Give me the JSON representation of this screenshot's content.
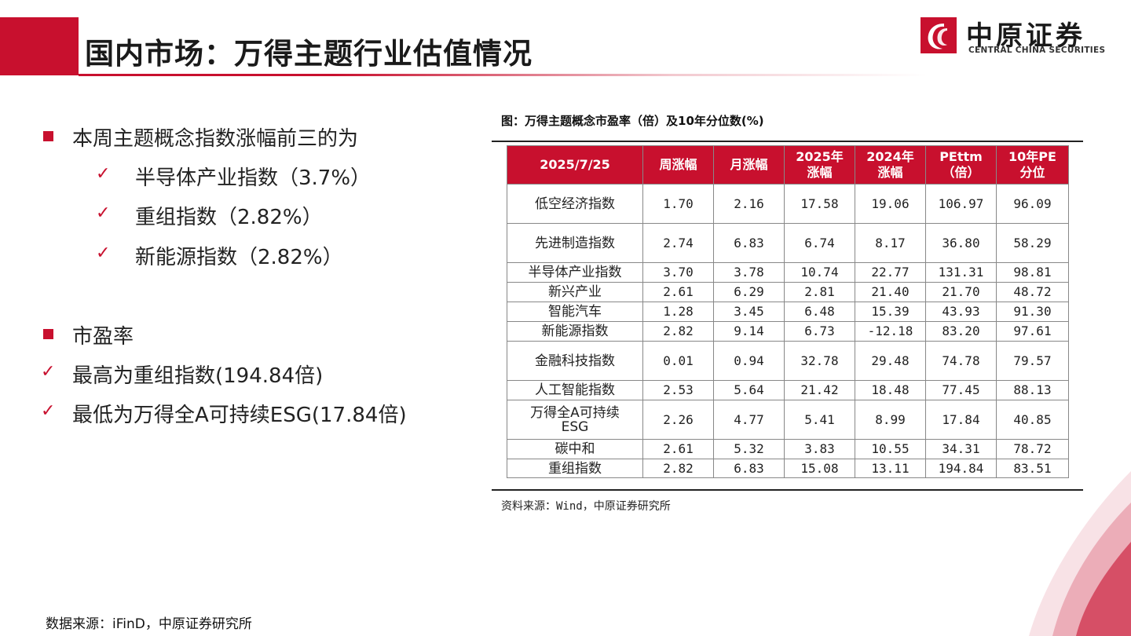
{
  "header": {
    "title": "国内市场：万得主题行业估值情况",
    "logo_cn": "中原证券",
    "logo_en": "CENTRAL CHINA SECURITIES"
  },
  "colors": {
    "accent": "#c8102e"
  },
  "left": {
    "b1": "本周主题概念指数涨幅前三的为",
    "c1": "半导体产业指数（3.7%）",
    "c2": "重组指数（2.82%）",
    "c3": "新能源指数（2.82%）",
    "b2": "市盈率",
    "c4": "最高为重组指数(194.84倍)",
    "c5": "最低为万得全A可持续ESG(17.84倍)",
    "check_glyph": "✓",
    "square_icon": "square-bullet-icon"
  },
  "figure": {
    "title": "图：万得主题概念市盈率（倍）及10年分位数(%)",
    "source": "资料来源：Wind，中原证券研究所"
  },
  "table": {
    "headers": [
      "2025/7/25",
      "周涨幅",
      "月涨幅",
      "2025年\n涨幅",
      "2024年\n涨幅",
      "PEttm\n（倍）",
      "10年PE\n分位"
    ],
    "rows": [
      [
        "低空经济指数",
        "1.70",
        "2.16",
        "17.58",
        "19.06",
        "106.97",
        "96.09"
      ],
      [
        "先进制造指数",
        "2.74",
        "6.83",
        "6.74",
        "8.17",
        "36.80",
        "58.29"
      ],
      [
        "半导体产业指数",
        "3.70",
        "3.78",
        "10.74",
        "22.77",
        "131.31",
        "98.81"
      ],
      [
        "新兴产业",
        "2.61",
        "6.29",
        "2.81",
        "21.40",
        "21.70",
        "48.72"
      ],
      [
        "智能汽车",
        "1.28",
        "3.45",
        "6.48",
        "15.39",
        "43.93",
        "91.30"
      ],
      [
        "新能源指数",
        "2.82",
        "9.14",
        "6.73",
        "-12.18",
        "83.20",
        "97.61"
      ],
      [
        "金融科技指数",
        "0.01",
        "0.94",
        "32.78",
        "29.48",
        "74.78",
        "79.57"
      ],
      [
        "人工智能指数",
        "2.53",
        "5.64",
        "21.42",
        "18.48",
        "77.45",
        "88.13"
      ],
      [
        "万得全A可持续\nESG",
        "2.26",
        "4.77",
        "5.41",
        "8.99",
        "17.84",
        "40.85"
      ],
      [
        "碳中和",
        "2.61",
        "5.32",
        "3.83",
        "10.55",
        "34.31",
        "78.72"
      ],
      [
        "重组指数",
        "2.82",
        "6.83",
        "15.08",
        "13.11",
        "194.84",
        "83.51"
      ]
    ]
  },
  "footer": {
    "source": "数据来源：iFinD，中原证券研究所"
  }
}
